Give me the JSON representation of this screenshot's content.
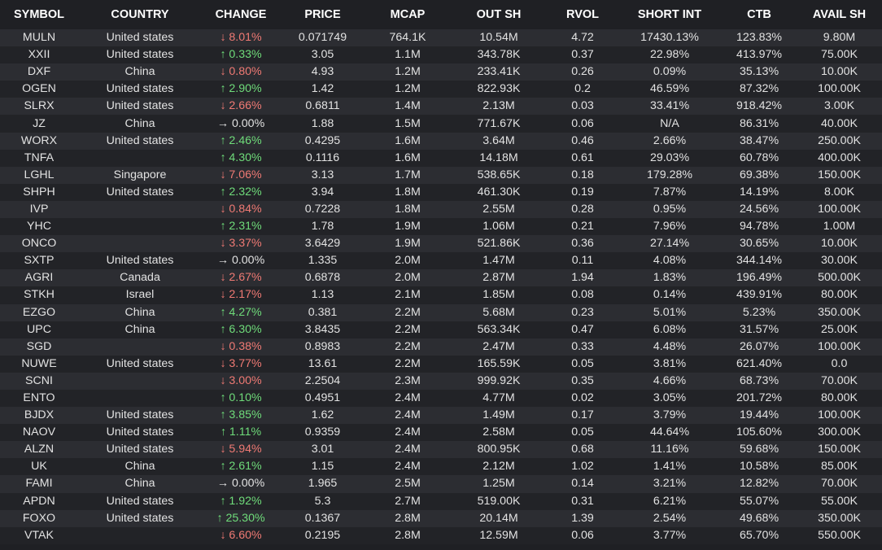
{
  "colors": {
    "background": "#1f2024",
    "row_alt": "#2c2d32",
    "up": "#6fdc7a",
    "down": "#f07a74",
    "header_text": "#ffffff"
  },
  "columns": [
    "SYMBOL",
    "COUNTRY",
    "CHANGE",
    "PRICE",
    "MCAP",
    "OUT SH",
    "RVOL",
    "SHORT INT",
    "CTB",
    "AVAIL SH"
  ],
  "rows": [
    {
      "symbol": "MULN",
      "country": "United states",
      "dir": "down",
      "change": "8.01%",
      "price": "0.071749",
      "mcap": "764.1K",
      "out_sh": "10.54M",
      "rvol": "4.72",
      "short_int": "17430.13%",
      "ctb": "123.83%",
      "avail_sh": "9.80M"
    },
    {
      "symbol": "XXII",
      "country": "United states",
      "dir": "up",
      "change": "0.33%",
      "price": "3.05",
      "mcap": "1.1M",
      "out_sh": "343.78K",
      "rvol": "0.37",
      "short_int": "22.98%",
      "ctb": "413.97%",
      "avail_sh": "75.00K"
    },
    {
      "symbol": "DXF",
      "country": "China",
      "dir": "down",
      "change": "0.80%",
      "price": "4.93",
      "mcap": "1.2M",
      "out_sh": "233.41K",
      "rvol": "0.26",
      "short_int": "0.09%",
      "ctb": "35.13%",
      "avail_sh": "10.00K"
    },
    {
      "symbol": "OGEN",
      "country": "United states",
      "dir": "up",
      "change": "2.90%",
      "price": "1.42",
      "mcap": "1.2M",
      "out_sh": "822.93K",
      "rvol": "0.2",
      "short_int": "46.59%",
      "ctb": "87.32%",
      "avail_sh": "100.00K"
    },
    {
      "symbol": "SLRX",
      "country": "United states",
      "dir": "down",
      "change": "2.66%",
      "price": "0.6811",
      "mcap": "1.4M",
      "out_sh": "2.13M",
      "rvol": "0.03",
      "short_int": "33.41%",
      "ctb": "918.42%",
      "avail_sh": "3.00K"
    },
    {
      "symbol": "JZ",
      "country": "China",
      "dir": "flat",
      "change": "0.00%",
      "price": "1.88",
      "mcap": "1.5M",
      "out_sh": "771.67K",
      "rvol": "0.06",
      "short_int": "N/A",
      "ctb": "86.31%",
      "avail_sh": "40.00K"
    },
    {
      "symbol": "WORX",
      "country": "United states",
      "dir": "up",
      "change": "2.46%",
      "price": "0.4295",
      "mcap": "1.6M",
      "out_sh": "3.64M",
      "rvol": "0.46",
      "short_int": "2.66%",
      "ctb": "38.47%",
      "avail_sh": "250.00K"
    },
    {
      "symbol": "TNFA",
      "country": "",
      "dir": "up",
      "change": "4.30%",
      "price": "0.1116",
      "mcap": "1.6M",
      "out_sh": "14.18M",
      "rvol": "0.61",
      "short_int": "29.03%",
      "ctb": "60.78%",
      "avail_sh": "400.00K"
    },
    {
      "symbol": "LGHL",
      "country": "Singapore",
      "dir": "down",
      "change": "7.06%",
      "price": "3.13",
      "mcap": "1.7M",
      "out_sh": "538.65K",
      "rvol": "0.18",
      "short_int": "179.28%",
      "ctb": "69.38%",
      "avail_sh": "150.00K"
    },
    {
      "symbol": "SHPH",
      "country": "United states",
      "dir": "up",
      "change": "2.32%",
      "price": "3.94",
      "mcap": "1.8M",
      "out_sh": "461.30K",
      "rvol": "0.19",
      "short_int": "7.87%",
      "ctb": "14.19%",
      "avail_sh": "8.00K"
    },
    {
      "symbol": "IVP",
      "country": "",
      "dir": "down",
      "change": "0.84%",
      "price": "0.7228",
      "mcap": "1.8M",
      "out_sh": "2.55M",
      "rvol": "0.28",
      "short_int": "0.95%",
      "ctb": "24.56%",
      "avail_sh": "100.00K"
    },
    {
      "symbol": "YHC",
      "country": "",
      "dir": "up",
      "change": "2.31%",
      "price": "1.78",
      "mcap": "1.9M",
      "out_sh": "1.06M",
      "rvol": "0.21",
      "short_int": "7.96%",
      "ctb": "94.78%",
      "avail_sh": "1.00M"
    },
    {
      "symbol": "ONCO",
      "country": "",
      "dir": "down",
      "change": "3.37%",
      "price": "3.6429",
      "mcap": "1.9M",
      "out_sh": "521.86K",
      "rvol": "0.36",
      "short_int": "27.14%",
      "ctb": "30.65%",
      "avail_sh": "10.00K"
    },
    {
      "symbol": "SXTP",
      "country": "United states",
      "dir": "flat",
      "change": "0.00%",
      "price": "1.335",
      "mcap": "2.0M",
      "out_sh": "1.47M",
      "rvol": "0.11",
      "short_int": "4.08%",
      "ctb": "344.14%",
      "avail_sh": "30.00K"
    },
    {
      "symbol": "AGRI",
      "country": "Canada",
      "dir": "down",
      "change": "2.67%",
      "price": "0.6878",
      "mcap": "2.0M",
      "out_sh": "2.87M",
      "rvol": "1.94",
      "short_int": "1.83%",
      "ctb": "196.49%",
      "avail_sh": "500.00K"
    },
    {
      "symbol": "STKH",
      "country": "Israel",
      "dir": "down",
      "change": "2.17%",
      "price": "1.13",
      "mcap": "2.1M",
      "out_sh": "1.85M",
      "rvol": "0.08",
      "short_int": "0.14%",
      "ctb": "439.91%",
      "avail_sh": "80.00K"
    },
    {
      "symbol": "EZGO",
      "country": "China",
      "dir": "up",
      "change": "4.27%",
      "price": "0.381",
      "mcap": "2.2M",
      "out_sh": "5.68M",
      "rvol": "0.23",
      "short_int": "5.01%",
      "ctb": "5.23%",
      "avail_sh": "350.00K"
    },
    {
      "symbol": "UPC",
      "country": "China",
      "dir": "up",
      "change": "6.30%",
      "price": "3.8435",
      "mcap": "2.2M",
      "out_sh": "563.34K",
      "rvol": "0.47",
      "short_int": "6.08%",
      "ctb": "31.57%",
      "avail_sh": "25.00K"
    },
    {
      "symbol": "SGD",
      "country": "",
      "dir": "down",
      "change": "0.38%",
      "price": "0.8983",
      "mcap": "2.2M",
      "out_sh": "2.47M",
      "rvol": "0.33",
      "short_int": "4.48%",
      "ctb": "26.07%",
      "avail_sh": "100.00K"
    },
    {
      "symbol": "NUWE",
      "country": "United states",
      "dir": "down",
      "change": "3.77%",
      "price": "13.61",
      "mcap": "2.2M",
      "out_sh": "165.59K",
      "rvol": "0.05",
      "short_int": "3.81%",
      "ctb": "621.40%",
      "avail_sh": "0.0"
    },
    {
      "symbol": "SCNI",
      "country": "",
      "dir": "down",
      "change": "3.00%",
      "price": "2.2504",
      "mcap": "2.3M",
      "out_sh": "999.92K",
      "rvol": "0.35",
      "short_int": "4.66%",
      "ctb": "68.73%",
      "avail_sh": "70.00K"
    },
    {
      "symbol": "ENTO",
      "country": "",
      "dir": "up",
      "change": "0.10%",
      "price": "0.4951",
      "mcap": "2.4M",
      "out_sh": "4.77M",
      "rvol": "0.02",
      "short_int": "3.05%",
      "ctb": "201.72%",
      "avail_sh": "80.00K"
    },
    {
      "symbol": "BJDX",
      "country": "United states",
      "dir": "up",
      "change": "3.85%",
      "price": "1.62",
      "mcap": "2.4M",
      "out_sh": "1.49M",
      "rvol": "0.17",
      "short_int": "3.79%",
      "ctb": "19.44%",
      "avail_sh": "100.00K"
    },
    {
      "symbol": "NAOV",
      "country": "United states",
      "dir": "up",
      "change": "1.11%",
      "price": "0.9359",
      "mcap": "2.4M",
      "out_sh": "2.58M",
      "rvol": "0.05",
      "short_int": "44.64%",
      "ctb": "105.60%",
      "avail_sh": "300.00K"
    },
    {
      "symbol": "ALZN",
      "country": "United states",
      "dir": "down",
      "change": "5.94%",
      "price": "3.01",
      "mcap": "2.4M",
      "out_sh": "800.95K",
      "rvol": "0.68",
      "short_int": "11.16%",
      "ctb": "59.68%",
      "avail_sh": "150.00K"
    },
    {
      "symbol": "UK",
      "country": "China",
      "dir": "up",
      "change": "2.61%",
      "price": "1.15",
      "mcap": "2.4M",
      "out_sh": "2.12M",
      "rvol": "1.02",
      "short_int": "1.41%",
      "ctb": "10.58%",
      "avail_sh": "85.00K"
    },
    {
      "symbol": "FAMI",
      "country": "China",
      "dir": "flat",
      "change": "0.00%",
      "price": "1.965",
      "mcap": "2.5M",
      "out_sh": "1.25M",
      "rvol": "0.14",
      "short_int": "3.21%",
      "ctb": "12.82%",
      "avail_sh": "70.00K"
    },
    {
      "symbol": "APDN",
      "country": "United states",
      "dir": "up",
      "change": "1.92%",
      "price": "5.3",
      "mcap": "2.7M",
      "out_sh": "519.00K",
      "rvol": "0.31",
      "short_int": "6.21%",
      "ctb": "55.07%",
      "avail_sh": "55.00K"
    },
    {
      "symbol": "FOXO",
      "country": "United states",
      "dir": "up",
      "change": "25.30%",
      "price": "0.1367",
      "mcap": "2.8M",
      "out_sh": "20.14M",
      "rvol": "1.39",
      "short_int": "2.54%",
      "ctb": "49.68%",
      "avail_sh": "350.00K"
    },
    {
      "symbol": "VTAK",
      "country": "",
      "dir": "down",
      "change": "6.60%",
      "price": "0.2195",
      "mcap": "2.8M",
      "out_sh": "12.59M",
      "rvol": "0.06",
      "short_int": "3.77%",
      "ctb": "65.70%",
      "avail_sh": "550.00K"
    }
  ]
}
